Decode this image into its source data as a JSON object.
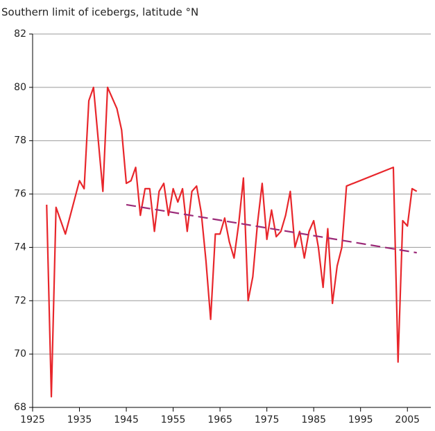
{
  "chart_data": {
    "type": "line",
    "title": "Southern limit of icebergs, latitude °N",
    "x": [
      1928,
      1929,
      1930,
      1932,
      1935,
      1936,
      1937,
      1938,
      1940,
      1941,
      1943,
      1944,
      1945,
      1946,
      1947,
      1948,
      1949,
      1950,
      1951,
      1952,
      1953,
      1954,
      1955,
      1956,
      1957,
      1958,
      1959,
      1960,
      1961,
      1962,
      1963,
      1964,
      1965,
      1966,
      1967,
      1968,
      1969,
      1970,
      1971,
      1972,
      1973,
      1974,
      1975,
      1976,
      1977,
      1978,
      1979,
      1980,
      1981,
      1982,
      1983,
      1984,
      1985,
      1986,
      1987,
      1988,
      1989,
      1990,
      1991,
      1992,
      2002,
      2003,
      2004,
      2005,
      2006,
      2007
    ],
    "values": [
      75.6,
      68.4,
      75.5,
      74.5,
      76.5,
      76.2,
      79.5,
      80.0,
      76.1,
      80.0,
      79.2,
      78.4,
      76.4,
      76.5,
      77.0,
      75.2,
      76.2,
      76.2,
      74.6,
      76.1,
      76.4,
      75.2,
      76.2,
      75.7,
      76.2,
      74.6,
      76.1,
      76.3,
      75.3,
      73.5,
      71.3,
      74.5,
      74.5,
      75.1,
      74.2,
      73.6,
      74.9,
      76.6,
      72.0,
      72.9,
      74.9,
      76.4,
      74.3,
      75.4,
      74.4,
      74.6,
      75.2,
      76.1,
      74.0,
      74.6,
      73.6,
      74.6,
      75.0,
      74.0,
      72.5,
      74.7,
      71.9,
      73.3,
      74.0,
      76.3,
      77.0,
      69.7,
      75.0,
      74.8,
      76.2,
      76.1
    ],
    "color": "#e8262b",
    "trend": {
      "x": [
        1945,
        2007
      ],
      "values": [
        75.6,
        73.8
      ],
      "color": "#9b2a78",
      "dashed": true
    },
    "xlim": [
      1925,
      2010
    ],
    "xticks": [
      1925,
      1935,
      1945,
      1955,
      1965,
      1975,
      1985,
      1995,
      2005
    ],
    "ylim": [
      68,
      82
    ],
    "yticks": [
      68,
      70,
      72,
      74,
      76,
      78,
      80,
      82
    ],
    "grid": true
  }
}
